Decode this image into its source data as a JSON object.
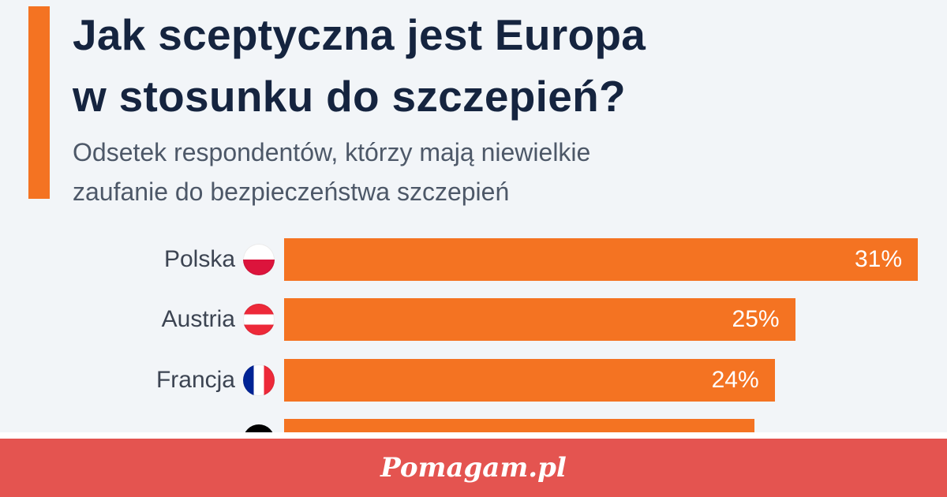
{
  "title_lines": [
    "Jak sceptyczna jest Europa",
    "w stosunku do szczepień?"
  ],
  "subtitle_lines": [
    "Odsetek respondentów, którzy mają niewielkie",
    "zaufanie do bezpieczeństwa szczepień"
  ],
  "colors": {
    "accent": "#f47322",
    "title": "#15243f",
    "footer": "#e45450"
  },
  "chart_data": {
    "type": "bar",
    "orientation": "horizontal",
    "title": "Jak sceptyczna jest Europa w stosunku do szczepień?",
    "subtitle": "Odsetek respondentów, którzy mają niewielkie zaufanie do bezpieczeństwa szczepień",
    "categories": [
      "Polska",
      "Austria",
      "Francja",
      ""
    ],
    "values": [
      31,
      25,
      24,
      23
    ],
    "value_labels": [
      "31%",
      "25%",
      "24%",
      ""
    ],
    "flags": [
      "poland-flag",
      "austria-flag",
      "france-flag",
      "germany-flag"
    ],
    "xlim": [
      0,
      31
    ],
    "grid": false
  },
  "footer": {
    "logo": "Pomagam.pl"
  }
}
